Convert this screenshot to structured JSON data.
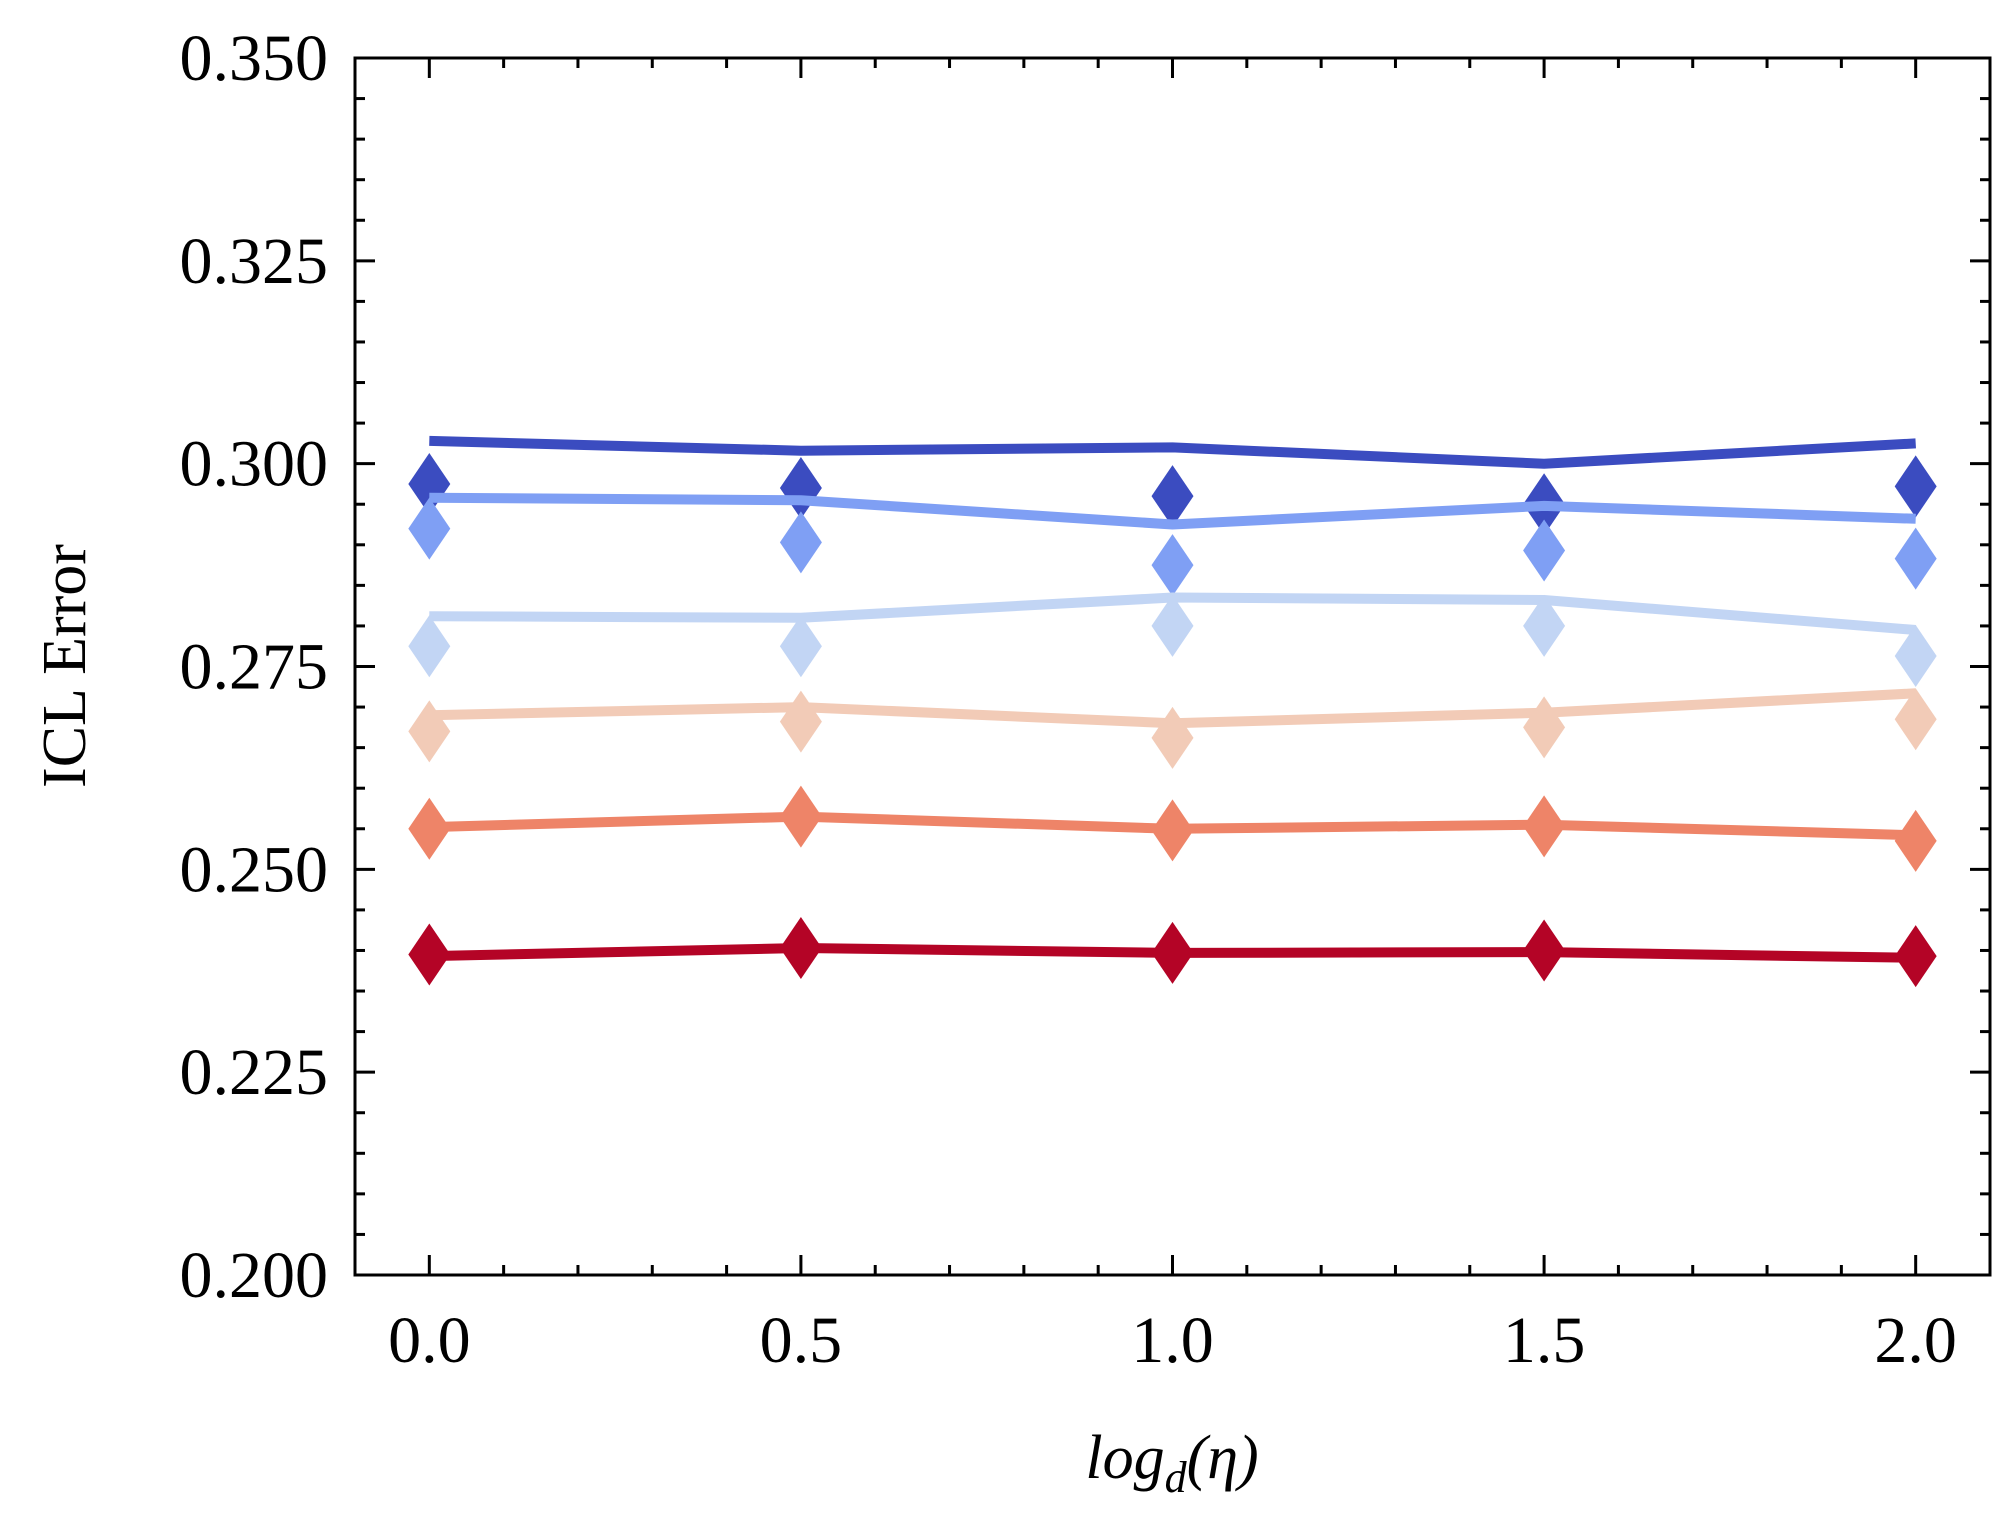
{
  "chart_data": {
    "type": "line",
    "title": "",
    "xlabel": "log",
    "xlabel_subscript": "d",
    "xlabel_suffix": "(η)",
    "ylabel": "ICL Error",
    "xlim": [
      -0.1,
      2.1
    ],
    "ylim": [
      0.2,
      0.35
    ],
    "x": [
      0.0,
      0.5,
      1.0,
      1.5,
      2.0
    ],
    "x_tick_labels": [
      "0.0",
      "0.5",
      "1.0",
      "1.5",
      "2.0"
    ],
    "y_ticks": [
      0.2,
      0.225,
      0.25,
      0.275,
      0.3,
      0.325,
      0.35
    ],
    "y_tick_labels": [
      "0.200",
      "0.225",
      "0.250",
      "0.275",
      "0.300",
      "0.325",
      "0.350"
    ],
    "grid": false,
    "marker": "diamond",
    "series": [
      {
        "color": "#3b4cc0",
        "line": [
          0.3028,
          0.3016,
          0.302,
          0.3,
          0.3025
        ],
        "markers": [
          0.2975,
          0.297,
          0.296,
          0.295,
          0.2972
        ]
      },
      {
        "color": "#7f9ff4",
        "line": [
          0.2958,
          0.2955,
          0.2925,
          0.2948,
          0.2932
        ],
        "markers": [
          0.292,
          0.2903,
          0.2875,
          0.2893,
          0.2883
        ]
      },
      {
        "color": "#c2d5f4",
        "line": [
          0.2812,
          0.281,
          0.2835,
          0.2832,
          0.2795
        ],
        "markers": [
          0.2775,
          0.2775,
          0.28,
          0.28,
          0.2763
        ]
      },
      {
        "color": "#f2cbb7",
        "line": [
          0.269,
          0.27,
          0.268,
          0.2693,
          0.2717
        ],
        "markers": [
          0.267,
          0.2682,
          0.2662,
          0.2675,
          0.2685
        ]
      },
      {
        "color": "#ee8468",
        "line": [
          0.2552,
          0.2565,
          0.255,
          0.2555,
          0.2542
        ],
        "markers": [
          0.255,
          0.2565,
          0.2548,
          0.2553,
          0.2535
        ]
      },
      {
        "color": "#b40426",
        "line": [
          0.2393,
          0.2403,
          0.2397,
          0.2398,
          0.2391
        ],
        "markers": [
          0.2395,
          0.2403,
          0.2397,
          0.24,
          0.2393
        ]
      }
    ]
  }
}
